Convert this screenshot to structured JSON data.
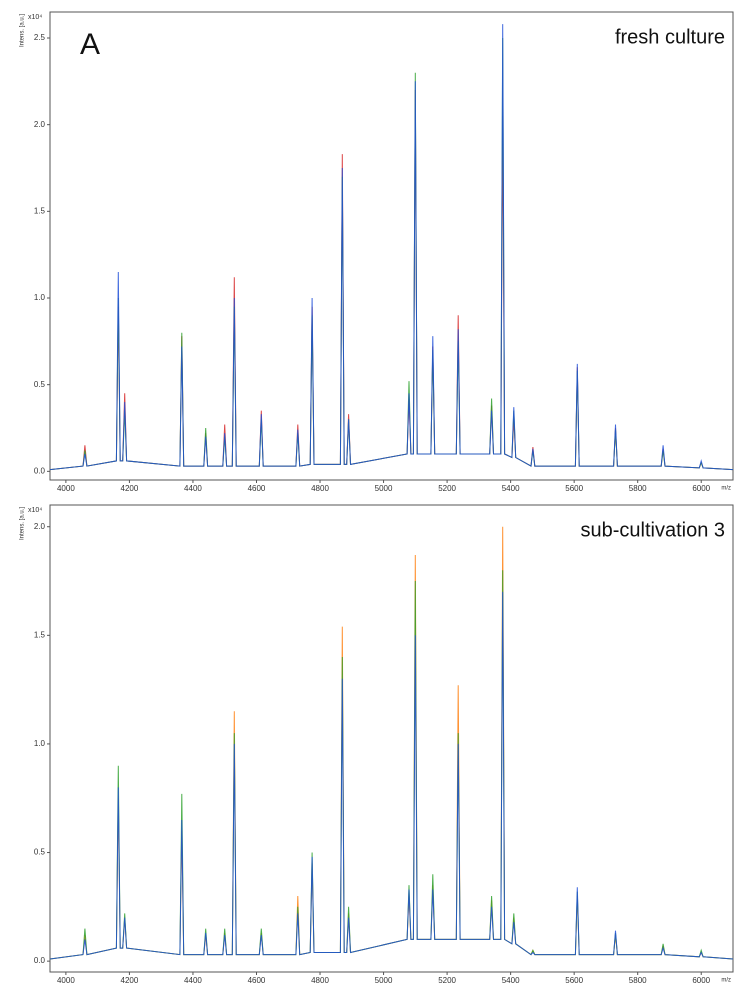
{
  "chart_data": [
    {
      "type": "line",
      "panel_label": "A",
      "annotation": "fresh culture",
      "ylabel": "Intens. [a.u.]",
      "yscale_label": "x10⁴",
      "xlabel": "m/z",
      "xlim": [
        3950,
        6100
      ],
      "xticks": [
        4000,
        4200,
        4400,
        4600,
        4800,
        5000,
        5200,
        5400,
        5600,
        5800,
        6000
      ],
      "ylim": [
        -0.05,
        2.65
      ],
      "yticks": [
        {
          "value": 0,
          "label": "0.0"
        },
        0.5,
        {
          "value": 1,
          "label": "1.0"
        },
        1.5,
        {
          "value": 2,
          "label": "2.0"
        },
        2.5
      ],
      "x": [
        3950,
        4054,
        4060,
        4066,
        4159,
        4165,
        4171,
        4179,
        4185,
        4191,
        4359,
        4365,
        4371,
        4434,
        4440,
        4446,
        4494,
        4500,
        4506,
        4524,
        4530,
        4536,
        4609,
        4615,
        4621,
        4724,
        4730,
        4736,
        4769,
        4775,
        4781,
        4864,
        4870,
        4876,
        4884,
        4890,
        4896,
        5074,
        5080,
        5086,
        5094,
        5100,
        5106,
        5149,
        5155,
        5161,
        5229,
        5235,
        5241,
        5334,
        5340,
        5346,
        5369,
        5375,
        5381,
        5404,
        5410,
        5416,
        5464,
        5470,
        5476,
        5604,
        5610,
        5616,
        5724,
        5730,
        5736,
        5874,
        5880,
        5886,
        5994,
        6000,
        6006,
        6100
      ],
      "series": [
        {
          "color": "#d62728",
          "values": [
            0.01,
            0.03,
            0.15,
            0.03,
            0.06,
            0.95,
            0.06,
            0.06,
            0.45,
            0.06,
            0.03,
            0.78,
            0.03,
            0.03,
            0.22,
            0.03,
            0.03,
            0.27,
            0.03,
            0.03,
            1.12,
            0.03,
            0.03,
            0.35,
            0.03,
            0.03,
            0.27,
            0.03,
            0.04,
            0.95,
            0.04,
            0.04,
            1.83,
            0.04,
            0.04,
            0.33,
            0.04,
            0.1,
            0.42,
            0.1,
            0.1,
            2.2,
            0.1,
            0.1,
            0.72,
            0.1,
            0.1,
            0.9,
            0.1,
            0.1,
            0.38,
            0.1,
            0.1,
            2.05,
            0.1,
            0.08,
            0.3,
            0.08,
            0.03,
            0.14,
            0.03,
            0.03,
            0.6,
            0.03,
            0.03,
            0.25,
            0.03,
            0.03,
            0.13,
            0.03,
            0.02,
            0.05,
            0.02,
            0.01
          ]
        },
        {
          "color": "#2ca02c",
          "values": [
            0.01,
            0.03,
            0.12,
            0.03,
            0.06,
            1.0,
            0.06,
            0.06,
            0.35,
            0.06,
            0.03,
            0.8,
            0.03,
            0.03,
            0.25,
            0.03,
            0.03,
            0.2,
            0.03,
            0.03,
            0.95,
            0.03,
            0.03,
            0.3,
            0.03,
            0.03,
            0.22,
            0.03,
            0.04,
            0.9,
            0.04,
            0.04,
            1.7,
            0.04,
            0.04,
            0.3,
            0.04,
            0.1,
            0.52,
            0.1,
            0.1,
            2.3,
            0.1,
            0.1,
            0.7,
            0.1,
            0.1,
            0.75,
            0.1,
            0.1,
            0.42,
            0.1,
            0.1,
            2.5,
            0.1,
            0.08,
            0.35,
            0.08,
            0.03,
            0.12,
            0.03,
            0.03,
            0.58,
            0.03,
            0.03,
            0.24,
            0.03,
            0.03,
            0.12,
            0.03,
            0.02,
            0.05,
            0.02,
            0.01
          ]
        },
        {
          "color": "#1f4fd8",
          "values": [
            0.01,
            0.03,
            0.1,
            0.03,
            0.06,
            1.15,
            0.06,
            0.06,
            0.4,
            0.06,
            0.03,
            0.72,
            0.03,
            0.03,
            0.2,
            0.03,
            0.03,
            0.22,
            0.03,
            0.03,
            1.0,
            0.03,
            0.03,
            0.33,
            0.03,
            0.03,
            0.24,
            0.03,
            0.04,
            1.0,
            0.04,
            0.04,
            1.75,
            0.04,
            0.04,
            0.3,
            0.04,
            0.1,
            0.45,
            0.1,
            0.1,
            2.25,
            0.1,
            0.1,
            0.78,
            0.1,
            0.1,
            0.82,
            0.1,
            0.1,
            0.35,
            0.1,
            0.1,
            2.58,
            0.1,
            0.08,
            0.37,
            0.08,
            0.03,
            0.13,
            0.03,
            0.03,
            0.62,
            0.03,
            0.03,
            0.27,
            0.03,
            0.03,
            0.15,
            0.03,
            0.02,
            0.06,
            0.02,
            0.01
          ]
        }
      ]
    },
    {
      "type": "line",
      "annotation": "sub-cultivation 3",
      "ylabel": "Intens. [a.u.]",
      "yscale_label": "x10⁴",
      "xlabel": "m/z",
      "xlim": [
        3950,
        6100
      ],
      "xticks": [
        4000,
        4200,
        4400,
        4600,
        4800,
        5000,
        5200,
        5400,
        5600,
        5800,
        6000
      ],
      "ylim": [
        -0.05,
        2.1
      ],
      "yticks": [
        {
          "value": 0,
          "label": "0.0"
        },
        0.5,
        {
          "value": 1,
          "label": "1.0"
        },
        1.5,
        {
          "value": 2,
          "label": "2.0"
        }
      ],
      "x": [
        3950,
        4054,
        4060,
        4066,
        4159,
        4165,
        4171,
        4179,
        4185,
        4191,
        4359,
        4365,
        4371,
        4434,
        4440,
        4446,
        4494,
        4500,
        4506,
        4524,
        4530,
        4536,
        4609,
        4615,
        4621,
        4724,
        4730,
        4736,
        4769,
        4775,
        4781,
        4864,
        4870,
        4876,
        4884,
        4890,
        4896,
        5074,
        5080,
        5086,
        5094,
        5100,
        5106,
        5149,
        5155,
        5161,
        5229,
        5235,
        5241,
        5334,
        5340,
        5346,
        5369,
        5375,
        5381,
        5404,
        5410,
        5416,
        5464,
        5470,
        5476,
        5604,
        5610,
        5616,
        5724,
        5730,
        5736,
        5874,
        5880,
        5886,
        5994,
        6000,
        6006,
        6100
      ],
      "series": [
        {
          "color": "#ff7f0e",
          "values": [
            0.01,
            0.03,
            0.12,
            0.03,
            0.06,
            0.75,
            0.06,
            0.06,
            0.2,
            0.06,
            0.03,
            0.6,
            0.03,
            0.03,
            0.12,
            0.03,
            0.03,
            0.13,
            0.03,
            0.03,
            1.15,
            0.03,
            0.03,
            0.13,
            0.03,
            0.03,
            0.3,
            0.03,
            0.04,
            0.45,
            0.04,
            0.04,
            1.54,
            0.04,
            0.04,
            0.22,
            0.04,
            0.1,
            0.3,
            0.1,
            0.1,
            1.87,
            0.1,
            0.1,
            0.35,
            0.1,
            0.1,
            1.27,
            0.1,
            0.1,
            0.28,
            0.1,
            0.1,
            2.0,
            0.1,
            0.08,
            0.2,
            0.08,
            0.03,
            0.05,
            0.03,
            0.03,
            0.3,
            0.03,
            0.03,
            0.12,
            0.03,
            0.03,
            0.07,
            0.03,
            0.02,
            0.04,
            0.02,
            0.01
          ]
        },
        {
          "color": "#2ca02c",
          "values": [
            0.01,
            0.03,
            0.15,
            0.03,
            0.06,
            0.9,
            0.06,
            0.06,
            0.22,
            0.06,
            0.03,
            0.77,
            0.03,
            0.03,
            0.15,
            0.03,
            0.03,
            0.15,
            0.03,
            0.03,
            1.05,
            0.03,
            0.03,
            0.15,
            0.03,
            0.03,
            0.25,
            0.03,
            0.04,
            0.5,
            0.04,
            0.04,
            1.4,
            0.04,
            0.04,
            0.25,
            0.04,
            0.1,
            0.35,
            0.1,
            0.1,
            1.75,
            0.1,
            0.1,
            0.4,
            0.1,
            0.1,
            1.05,
            0.1,
            0.1,
            0.3,
            0.1,
            0.1,
            1.8,
            0.1,
            0.08,
            0.22,
            0.08,
            0.03,
            0.05,
            0.03,
            0.03,
            0.32,
            0.03,
            0.03,
            0.13,
            0.03,
            0.03,
            0.08,
            0.03,
            0.02,
            0.05,
            0.02,
            0.01
          ]
        },
        {
          "color": "#1f4fd8",
          "values": [
            0.01,
            0.03,
            0.1,
            0.03,
            0.06,
            0.8,
            0.06,
            0.06,
            0.2,
            0.06,
            0.03,
            0.65,
            0.03,
            0.03,
            0.13,
            0.03,
            0.03,
            0.12,
            0.03,
            0.03,
            1.0,
            0.03,
            0.03,
            0.12,
            0.03,
            0.03,
            0.22,
            0.03,
            0.04,
            0.48,
            0.04,
            0.04,
            1.3,
            0.04,
            0.04,
            0.2,
            0.04,
            0.1,
            0.33,
            0.1,
            0.1,
            1.5,
            0.1,
            0.1,
            0.33,
            0.1,
            0.1,
            1.0,
            0.1,
            0.1,
            0.25,
            0.1,
            0.1,
            1.7,
            0.1,
            0.08,
            0.18,
            0.08,
            0.03,
            0.04,
            0.03,
            0.03,
            0.34,
            0.03,
            0.03,
            0.14,
            0.03,
            0.03,
            0.06,
            0.03,
            0.02,
            0.04,
            0.02,
            0.01
          ]
        }
      ]
    }
  ]
}
